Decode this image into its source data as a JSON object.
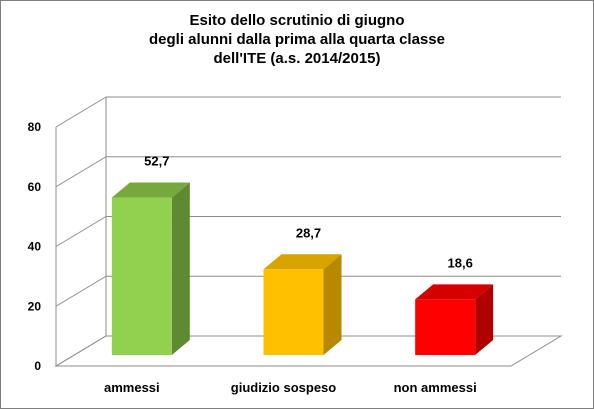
{
  "chart_data": {
    "type": "bar",
    "title_lines": [
      "Esito dello scrutinio di giugno",
      "degli alunni dalla prima alla quarta classe",
      "dell'ITE  (a.s. 2014/2015)"
    ],
    "categories": [
      "ammessi",
      "giudizio sospeso",
      "non ammessi"
    ],
    "values": [
      52.7,
      28.7,
      18.6
    ],
    "value_labels": [
      "52,7",
      "28,7",
      "18,6"
    ],
    "ylim": [
      0,
      80
    ],
    "yticks": [
      0,
      20,
      40,
      60,
      80
    ],
    "xlabel": "",
    "ylabel": "",
    "grid": true,
    "legend": "none",
    "bar_colors": [
      {
        "front": "#92d050",
        "side": "#5e8a31",
        "top": "#76a83c"
      },
      {
        "front": "#ffc000",
        "side": "#b88900",
        "top": "#d9a300"
      },
      {
        "front": "#ff0000",
        "side": "#b00000",
        "top": "#d60000"
      }
    ],
    "grid_color": "#8c8c8c"
  }
}
